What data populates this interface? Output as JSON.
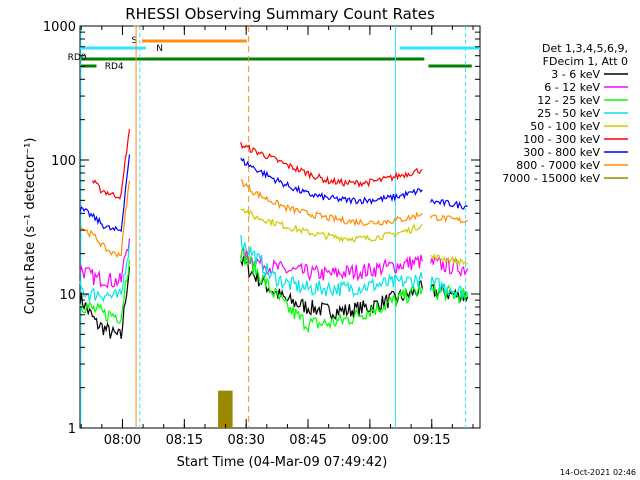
{
  "chart_data": {
    "type": "line",
    "title": "RHESSI Observing Summary Count Rates",
    "xlabel": "Start Time (04-Mar-09 07:49:42)",
    "ylabel": "Count Rate (s⁻¹ detector⁻¹)",
    "yscale": "log",
    "xlim_minutes": [
      0,
      97
    ],
    "ylim": [
      1,
      1000
    ],
    "x_ticks": [
      "08:00",
      "08:15",
      "08:30",
      "08:45",
      "09:00",
      "09:15"
    ],
    "y_ticks": [
      "1",
      "10",
      "100",
      "1000"
    ],
    "legend_header": [
      "Det 1,3,4,5,6,9,",
      "FDecim 1, Att 0"
    ],
    "legend_position": "right",
    "footer_date": "14-Oct-2021 02:46",
    "flags": [
      {
        "label": "S",
        "color": "#ff8c1a"
      },
      {
        "label": "N",
        "color": "#33e6ff"
      },
      {
        "label": "RD0",
        "color": "#008000"
      },
      {
        "label": "RD4",
        "color": "#008000"
      }
    ],
    "series": [
      {
        "name": "3 - 6 keV",
        "color": "#000000",
        "segments": [
          [
            [
              0,
              9.5
            ],
            [
              2,
              7.5
            ],
            [
              4,
              6
            ],
            [
              6,
              5.5
            ],
            [
              8,
              5
            ],
            [
              10,
              4.8
            ],
            [
              11,
              9
            ],
            [
              12,
              16
            ]
          ],
          [
            [
              39,
              18
            ],
            [
              42,
              14
            ],
            [
              46,
              11
            ],
            [
              50,
              9
            ],
            [
              55,
              8
            ],
            [
              60,
              7.5
            ],
            [
              65,
              7.5
            ],
            [
              70,
              8
            ],
            [
              75,
              9
            ],
            [
              80,
              10
            ],
            [
              83,
              11
            ]
          ],
          [
            [
              85,
              10.5
            ],
            [
              90,
              10
            ],
            [
              94,
              9.5
            ]
          ]
        ]
      },
      {
        "name": "6 - 12 keV",
        "color": "#ff00ff",
        "segments": [
          [
            [
              0,
              15.5
            ],
            [
              2,
              14
            ],
            [
              4,
              13
            ],
            [
              6,
              13
            ],
            [
              8,
              12.5
            ],
            [
              10,
              12.5
            ],
            [
              11,
              20
            ],
            [
              12,
              26
            ]
          ],
          [
            [
              39,
              20
            ],
            [
              42,
              18
            ],
            [
              46,
              16
            ],
            [
              50,
              15
            ],
            [
              55,
              14.5
            ],
            [
              60,
              14
            ],
            [
              65,
              14.5
            ],
            [
              70,
              15
            ],
            [
              75,
              16
            ],
            [
              80,
              17
            ],
            [
              83,
              17.5
            ]
          ],
          [
            [
              85,
              17
            ],
            [
              90,
              16
            ],
            [
              94,
              15.5
            ]
          ]
        ]
      },
      {
        "name": "12 - 25 keV",
        "color": "#00ff00",
        "segments": [
          [
            [
              0,
              8.5
            ],
            [
              2,
              8
            ],
            [
              4,
              7.5
            ],
            [
              6,
              7
            ],
            [
              8,
              7
            ],
            [
              10,
              6.8
            ],
            [
              11,
              12
            ],
            [
              12,
              18
            ]
          ],
          [
            [
              39,
              20
            ],
            [
              42,
              16
            ],
            [
              46,
              11
            ],
            [
              50,
              8
            ],
            [
              55,
              6
            ],
            [
              60,
              6
            ],
            [
              65,
              6.5
            ],
            [
              70,
              7.5
            ],
            [
              75,
              8.5
            ],
            [
              80,
              10
            ],
            [
              83,
              11
            ]
          ],
          [
            [
              85,
              10.5
            ],
            [
              90,
              10
            ],
            [
              94,
              9.5
            ]
          ]
        ]
      },
      {
        "name": "25 - 50 keV",
        "color": "#00e6e6",
        "segments": [
          [
            [
              0,
              11
            ],
            [
              2,
              10
            ],
            [
              4,
              10
            ],
            [
              6,
              10
            ],
            [
              8,
              9.5
            ],
            [
              10,
              9.5
            ],
            [
              11,
              16
            ],
            [
              12,
              24
            ]
          ],
          [
            [
              39,
              25
            ],
            [
              42,
              20
            ],
            [
              46,
              14
            ],
            [
              50,
              12
            ],
            [
              55,
              11
            ],
            [
              60,
              11
            ],
            [
              65,
              11
            ],
            [
              70,
              11.5
            ],
            [
              75,
              12
            ],
            [
              80,
              12.5
            ],
            [
              83,
              13
            ]
          ],
          [
            [
              85,
              12
            ],
            [
              90,
              11
            ],
            [
              94,
              10
            ]
          ]
        ]
      },
      {
        "name": "50 - 100 keV",
        "color": "#cccc00",
        "segments": [
          [
            [
              39,
              45
            ],
            [
              42,
              38
            ],
            [
              46,
              35
            ],
            [
              50,
              32
            ],
            [
              55,
              29
            ],
            [
              60,
              27
            ],
            [
              65,
              26
            ],
            [
              70,
              26
            ],
            [
              75,
              27.5
            ],
            [
              80,
              30
            ],
            [
              83,
              33
            ]
          ],
          [
            [
              85,
              19
            ],
            [
              90,
              18
            ],
            [
              94,
              17
            ]
          ]
        ]
      },
      {
        "name": "100 - 300 keV",
        "color": "#ff0000",
        "segments": [
          [
            [
              3,
              70
            ],
            [
              5,
              60
            ],
            [
              8,
              55
            ],
            [
              10,
              54
            ],
            [
              11,
              100
            ],
            [
              12,
              170
            ]
          ],
          [
            [
              39,
              130
            ],
            [
              42,
              118
            ],
            [
              46,
              105
            ],
            [
              50,
              92
            ],
            [
              55,
              80
            ],
            [
              60,
              70
            ],
            [
              65,
              67
            ],
            [
              70,
              68
            ],
            [
              75,
              73
            ],
            [
              80,
              80
            ],
            [
              83,
              85
            ]
          ]
        ]
      },
      {
        "name": "300 - 800 keV",
        "color": "#0000ff",
        "segments": [
          [
            [
              0,
              43
            ],
            [
              2,
              40
            ],
            [
              4,
              36
            ],
            [
              6,
              32
            ],
            [
              8,
              30
            ],
            [
              10,
              30
            ],
            [
              11,
              60
            ],
            [
              12,
              110
            ]
          ],
          [
            [
              39,
              100
            ],
            [
              42,
              88
            ],
            [
              46,
              75
            ],
            [
              50,
              65
            ],
            [
              55,
              56
            ],
            [
              60,
              52
            ],
            [
              65,
              50
            ],
            [
              70,
              50
            ],
            [
              75,
              52
            ],
            [
              80,
              56
            ],
            [
              83,
              60
            ]
          ],
          [
            [
              85,
              49
            ],
            [
              90,
              47
            ],
            [
              94,
              45
            ]
          ]
        ]
      },
      {
        "name": "800 - 7000 keV",
        "color": "#ff8c00",
        "segments": [
          [
            [
              0,
              32
            ],
            [
              2,
              29
            ],
            [
              4,
              26
            ],
            [
              6,
              22
            ],
            [
              8,
              20
            ],
            [
              10,
              20
            ],
            [
              11,
              40
            ],
            [
              12,
              70
            ]
          ],
          [
            [
              39,
              70
            ],
            [
              42,
              58
            ],
            [
              46,
              50
            ],
            [
              50,
              44
            ],
            [
              55,
              40
            ],
            [
              60,
              37
            ],
            [
              65,
              35
            ],
            [
              70,
              34
            ],
            [
              75,
              35
            ],
            [
              80,
              37
            ],
            [
              83,
              40
            ]
          ],
          [
            [
              85,
              38
            ],
            [
              90,
              36
            ],
            [
              94,
              35
            ]
          ]
        ]
      },
      {
        "name": "7000 - 15000 keV",
        "color": "#998800",
        "segments": [
          [
            [
              12,
              1
            ],
            [
              13,
              1
            ]
          ],
          [
            [
              13,
              1000
            ],
            [
              14.5,
              1000
            ]
          ],
          [
            [
              33.5,
              1.9
            ],
            [
              37,
              1.9
            ]
          ]
        ]
      }
    ]
  }
}
